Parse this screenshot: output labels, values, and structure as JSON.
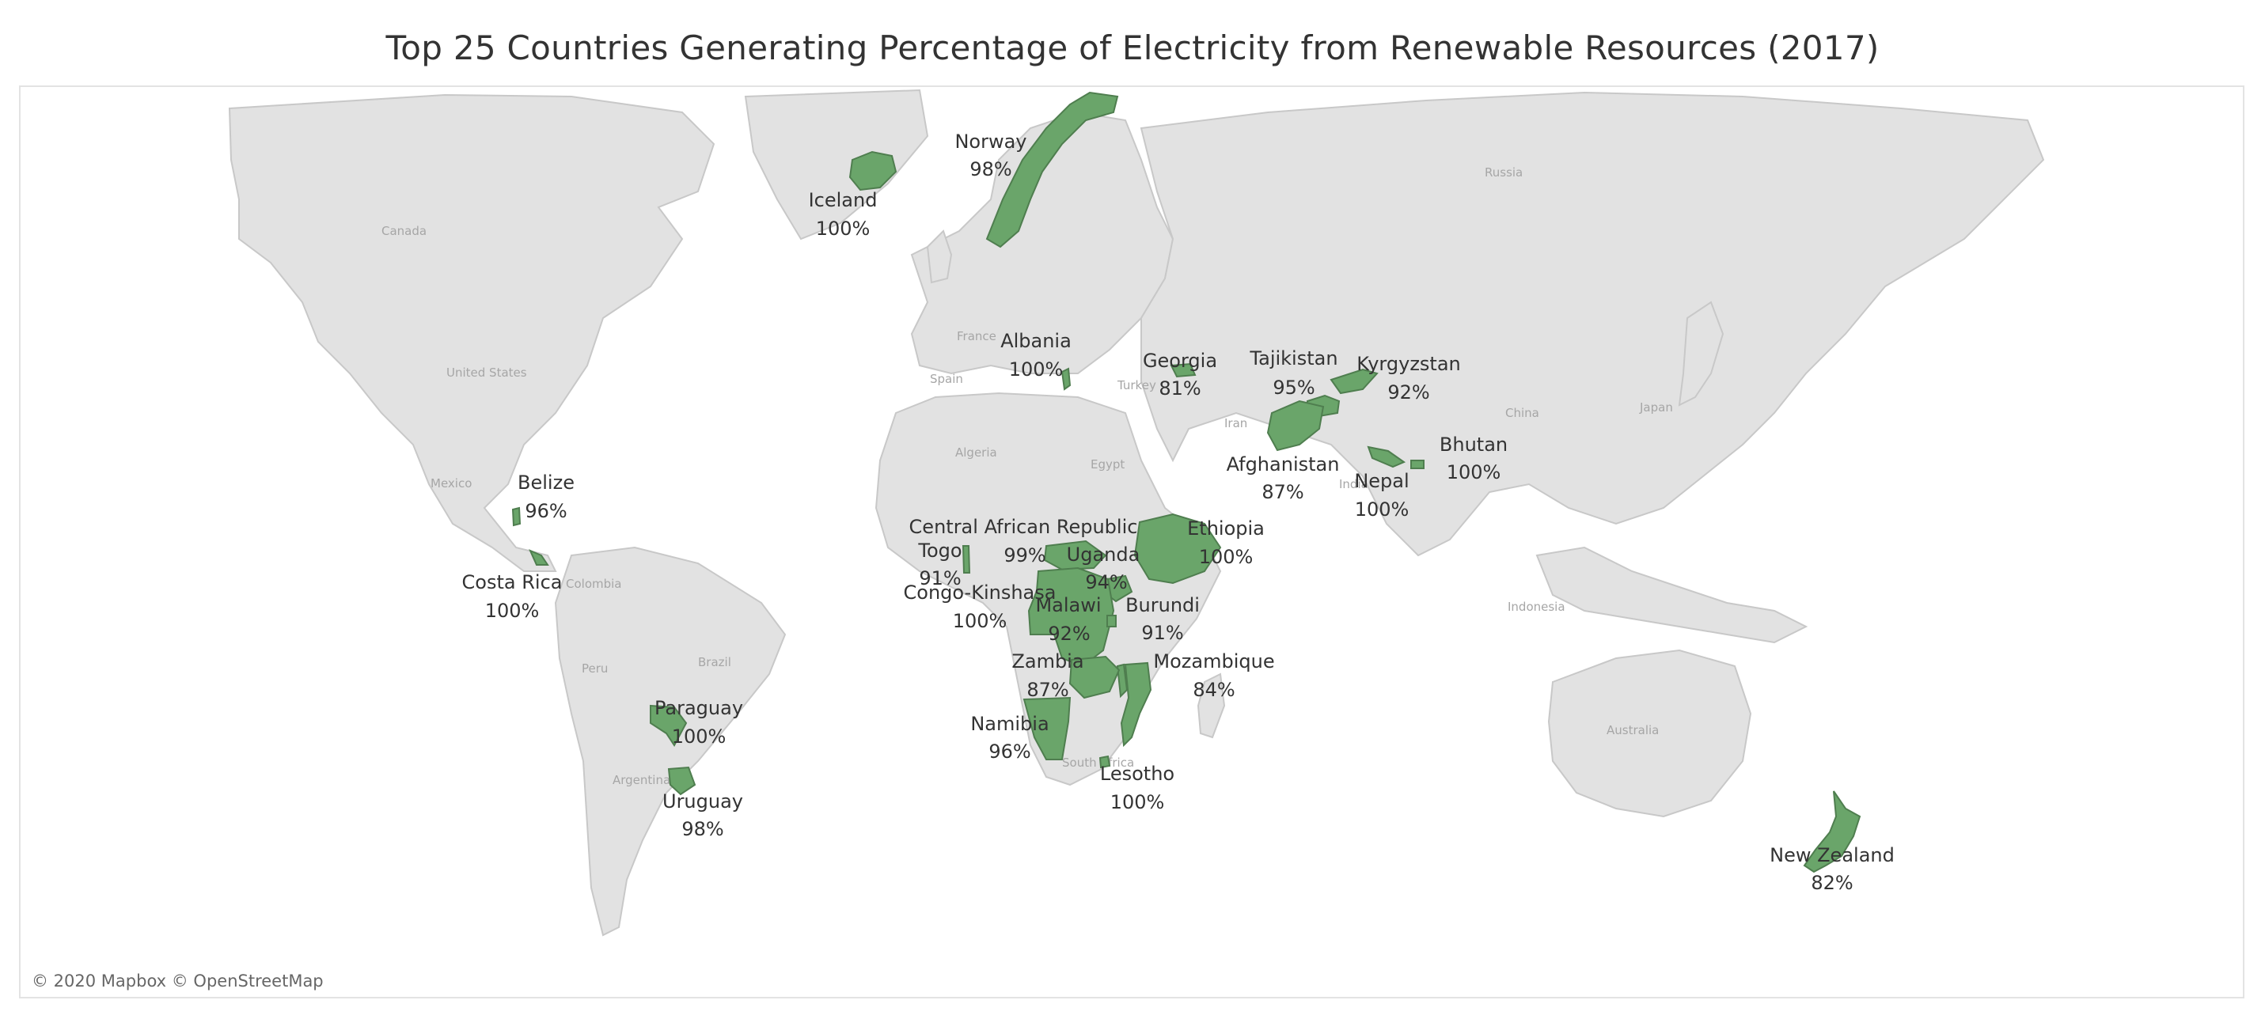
{
  "title": "Top 25 Countries Generating Percentage of Electricity from Renewable Resources (2017)",
  "attribution": "© 2020 Mapbox © OpenStreetMap",
  "colors": {
    "highlight": "#6aa56a",
    "highlight_border": "#4f7e4f",
    "land": "#e2e2e2",
    "water": "#ffffff"
  },
  "background_labels": [
    "Russia",
    "Canada",
    "United States",
    "China",
    "Japan",
    "India",
    "Iran",
    "Turkey",
    "France",
    "Spain",
    "Algeria",
    "Egypt",
    "Mexico",
    "Colombia",
    "Peru",
    "Brazil",
    "Argentina",
    "South Africa",
    "Indonesia",
    "Australia"
  ],
  "countries": [
    {
      "name": "Norway",
      "value": "98%"
    },
    {
      "name": "Iceland",
      "value": "100%"
    },
    {
      "name": "Albania",
      "value": "100%"
    },
    {
      "name": "Georgia",
      "value": "81%"
    },
    {
      "name": "Tajikistan",
      "value": "95%"
    },
    {
      "name": "Kyrgyzstan",
      "value": "92%"
    },
    {
      "name": "Afghanistan",
      "value": "87%"
    },
    {
      "name": "Nepal",
      "value": "100%"
    },
    {
      "name": "Bhutan",
      "value": "100%"
    },
    {
      "name": "Belize",
      "value": "96%"
    },
    {
      "name": "Costa Rica",
      "value": "100%"
    },
    {
      "name": "Central African Republic",
      "value": "99%"
    },
    {
      "name": "Togo",
      "value": "91%"
    },
    {
      "name": "Uganda",
      "value": "94%"
    },
    {
      "name": "Ethiopia",
      "value": "100%"
    },
    {
      "name": "Congo-Kinshasa",
      "value": "100%"
    },
    {
      "name": "Malawi",
      "value": "92%"
    },
    {
      "name": "Burundi",
      "value": "91%"
    },
    {
      "name": "Zambia",
      "value": "87%"
    },
    {
      "name": "Mozambique",
      "value": "84%"
    },
    {
      "name": "Namibia",
      "value": "96%"
    },
    {
      "name": "Lesotho",
      "value": "100%"
    },
    {
      "name": "Paraguay",
      "value": "100%"
    },
    {
      "name": "Uruguay",
      "value": "98%"
    },
    {
      "name": "New Zealand",
      "value": "82%"
    }
  ]
}
